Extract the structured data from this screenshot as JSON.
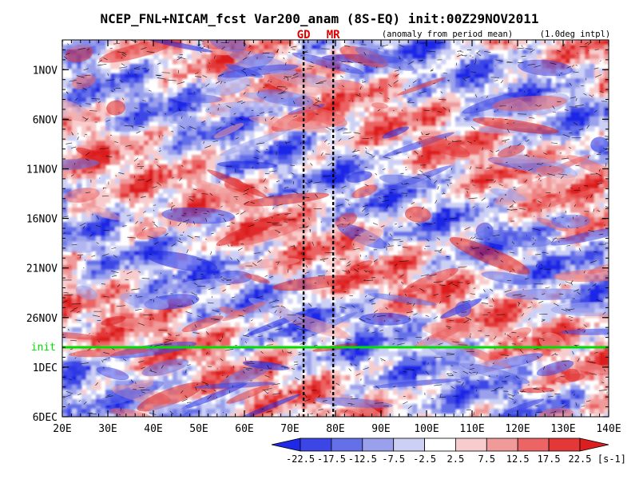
{
  "chart_data": {
    "type": "heatmap",
    "title": "NCEP_FNL+NICAM_fcst Var200_anam (8S-EQ) init:00Z29NOV2011",
    "subtitle": "(anomaly from period mean)",
    "resolution_note": "(1.0deg intpl)",
    "x_axis": {
      "range": [
        20,
        140
      ],
      "ticks": [
        20,
        30,
        40,
        50,
        60,
        70,
        80,
        90,
        100,
        110,
        120,
        130,
        140
      ],
      "tick_labels": [
        "20E",
        "30E",
        "40E",
        "50E",
        "60E",
        "70E",
        "80E",
        "90E",
        "100E",
        "110E",
        "120E",
        "130E",
        "140E"
      ],
      "unit": "longitude"
    },
    "y_axis": {
      "range": [
        "2011-10-29",
        "2011-12-06"
      ],
      "inverted": true,
      "ticks": [
        "2011-11-01",
        "2011-11-06",
        "2011-11-11",
        "2011-11-16",
        "2011-11-21",
        "2011-11-26",
        "2011-12-01",
        "2011-12-06"
      ],
      "tick_labels": [
        "1NOV",
        "6NOV",
        "11NOV",
        "16NOV",
        "21NOV",
        "26NOV",
        "1DEC",
        "6DEC"
      ],
      "unit": "date"
    },
    "init_marker": {
      "date": "2011-11-29",
      "label": "init",
      "color": "#00e000"
    },
    "vertical_markers": [
      {
        "lon": 73,
        "label": "GD",
        "color": "#e00000"
      },
      {
        "lon": 79.5,
        "label": "MR",
        "color": "#e00000"
      }
    ],
    "colorbar": {
      "levels": [
        "-22.5",
        "-17.5",
        "-12.5",
        "-7.5",
        "-2.5",
        "2.5",
        "7.5",
        "12.5",
        "17.5",
        "22.5"
      ],
      "colors": [
        "#1e28e6",
        "#3c46e6",
        "#6470e8",
        "#9aa0ec",
        "#ccd0f4",
        "#ffffff",
        "#f8cccc",
        "#f09a9a",
        "#ec6464",
        "#e43838",
        "#dc1e1e"
      ],
      "units": "[s-1]"
    },
    "grid": false,
    "legend": "bottom"
  }
}
